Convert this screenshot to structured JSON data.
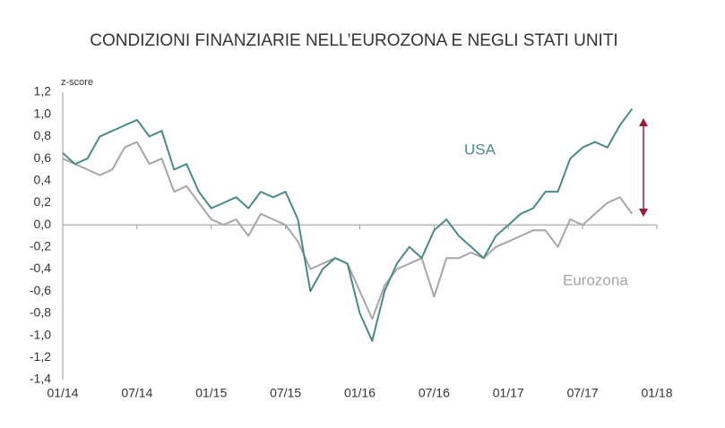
{
  "chart_data": {
    "type": "line",
    "title": "CONDIZIONI FINANZIARIE NELL’EUROZONA E NEGLI STATI UNITI",
    "y_label": "z-score",
    "annotations": [
      "USA",
      "Eurozona"
    ],
    "x": [
      "01/14",
      "02/14",
      "03/14",
      "04/14",
      "05/14",
      "06/14",
      "07/14",
      "08/14",
      "09/14",
      "10/14",
      "11/14",
      "12/14",
      "01/15",
      "02/15",
      "03/15",
      "04/15",
      "05/15",
      "06/15",
      "07/15",
      "08/15",
      "09/15",
      "10/15",
      "11/15",
      "12/15",
      "01/16",
      "02/16",
      "03/16",
      "04/16",
      "05/16",
      "06/16",
      "07/16",
      "08/16",
      "09/16",
      "10/16",
      "11/16",
      "12/16",
      "01/17",
      "02/17",
      "03/17",
      "04/17",
      "05/17",
      "06/17",
      "07/17",
      "08/17",
      "09/17",
      "10/17",
      "11/17"
    ],
    "series": [
      {
        "name": "Eurozona",
        "color": "#a6a6a6",
        "values": [
          0.6,
          0.55,
          0.5,
          0.45,
          0.5,
          0.7,
          0.75,
          0.55,
          0.6,
          0.3,
          0.35,
          0.2,
          0.05,
          0.0,
          0.05,
          -0.1,
          0.1,
          0.05,
          0.0,
          -0.15,
          -0.4,
          -0.35,
          -0.3,
          -0.35,
          -0.6,
          -0.85,
          -0.55,
          -0.4,
          -0.35,
          -0.3,
          -0.65,
          -0.3,
          -0.3,
          -0.25,
          -0.3,
          -0.2,
          -0.15,
          -0.1,
          -0.05,
          -0.05,
          -0.2,
          0.05,
          0.0,
          0.1,
          0.2,
          0.25,
          0.1
        ]
      },
      {
        "name": "USA",
        "color": "#4a8a86",
        "values": [
          0.65,
          0.55,
          0.6,
          0.8,
          0.85,
          0.9,
          0.95,
          0.8,
          0.85,
          0.5,
          0.55,
          0.3,
          0.15,
          0.2,
          0.25,
          0.15,
          0.3,
          0.25,
          0.3,
          0.05,
          -0.6,
          -0.4,
          -0.3,
          -0.35,
          -0.8,
          -1.05,
          -0.6,
          -0.35,
          -0.2,
          -0.3,
          -0.05,
          0.05,
          -0.1,
          -0.2,
          -0.3,
          -0.1,
          0.0,
          0.1,
          0.15,
          0.3,
          0.3,
          0.6,
          0.7,
          0.75,
          0.7,
          0.9,
          1.05
        ]
      }
    ],
    "xlim": [
      "01/14",
      "01/18"
    ],
    "xticks": [
      "01/14",
      "07/14",
      "01/15",
      "07/15",
      "01/16",
      "07/16",
      "01/17",
      "07/17",
      "01/18"
    ],
    "ylim": [
      -1.4,
      1.2
    ],
    "yticks": [
      {
        "value": -1.4,
        "label": "-1,4"
      },
      {
        "value": -1.2,
        "label": "-1,2"
      },
      {
        "value": -1.0,
        "label": "-1,0"
      },
      {
        "value": -0.8,
        "label": "-0,8"
      },
      {
        "value": -0.6,
        "label": "-0,6"
      },
      {
        "value": -0.4,
        "label": "-0,4"
      },
      {
        "value": -0.2,
        "label": "-0,2"
      },
      {
        "value": 0,
        "label": "0,0"
      },
      {
        "value": 0.2,
        "label": "0,2"
      },
      {
        "value": 0.4,
        "label": "0,4"
      },
      {
        "value": 0.6,
        "label": "0,6"
      },
      {
        "value": 0.8,
        "label": "0,8"
      },
      {
        "value": 1.0,
        "label": "1,0"
      },
      {
        "value": 1.2,
        "label": "1,2"
      }
    ]
  }
}
